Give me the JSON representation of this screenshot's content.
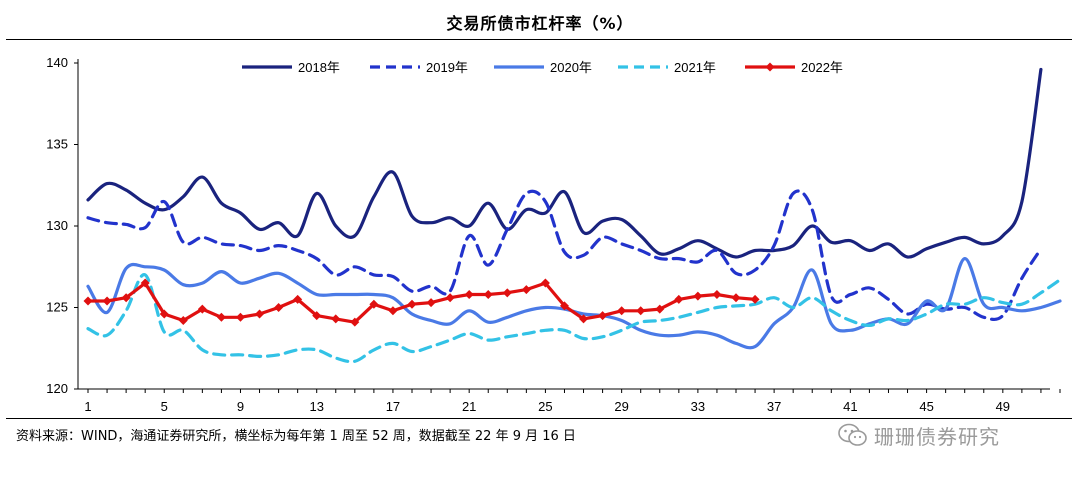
{
  "title": "交易所债市杠杆率（%）",
  "source_note": "资料来源：WIND，海通证券研究所，横坐标为每年第 1 周至 52 周，数据截至 22 年 9 月 16 日",
  "watermark": "珊珊债券研究",
  "colors": {
    "2018年": "#1a237e",
    "2019年": "#2233cc",
    "2020年": "#4a7ae6",
    "2021年": "#33c2e6",
    "2022年": "#e01010"
  },
  "chart_data": {
    "type": "line",
    "title": "交易所债市杠杆率（%）",
    "xlabel": "",
    "ylabel": "",
    "xlim": [
      1,
      52
    ],
    "ylim": [
      120,
      140
    ],
    "yticks": [
      120,
      125,
      130,
      135,
      140
    ],
    "xticks": [
      1,
      5,
      9,
      13,
      17,
      21,
      25,
      29,
      33,
      37,
      41,
      45,
      49
    ],
    "grid": false,
    "legend_position": "top",
    "series": [
      {
        "name": "2018年",
        "style": "solid",
        "markers": false,
        "x": [
          1,
          2,
          3,
          4,
          5,
          6,
          7,
          8,
          9,
          10,
          11,
          12,
          13,
          14,
          15,
          16,
          17,
          18,
          19,
          20,
          21,
          22,
          23,
          24,
          25,
          26,
          27,
          28,
          29,
          30,
          31,
          32,
          33,
          34,
          35,
          36,
          37,
          38,
          39,
          40,
          41,
          42,
          43,
          44,
          45,
          46,
          47,
          48,
          49,
          50,
          51
        ],
        "values": [
          131.6,
          132.6,
          132.2,
          131.4,
          131.0,
          131.8,
          133.0,
          131.4,
          130.8,
          129.8,
          130.2,
          129.4,
          132.0,
          130.0,
          129.4,
          131.8,
          133.3,
          130.6,
          130.2,
          130.5,
          130.0,
          131.4,
          129.8,
          131.0,
          130.8,
          132.1,
          129.6,
          130.3,
          130.4,
          129.4,
          128.3,
          128.6,
          129.1,
          128.6,
          128.1,
          128.5,
          128.5,
          128.8,
          130.0,
          129.0,
          129.1,
          128.5,
          128.9,
          128.1,
          128.6,
          129.0,
          129.3,
          128.9,
          129.4,
          131.5,
          139.6
        ]
      },
      {
        "name": "2019年",
        "style": "dashed",
        "markers": false,
        "x": [
          1,
          2,
          3,
          4,
          5,
          6,
          7,
          8,
          9,
          10,
          11,
          12,
          13,
          14,
          15,
          16,
          17,
          18,
          19,
          20,
          21,
          22,
          23,
          24,
          25,
          26,
          27,
          28,
          29,
          30,
          31,
          32,
          33,
          34,
          35,
          36,
          37,
          38,
          39,
          40,
          41,
          42,
          43,
          44,
          45,
          46,
          47,
          48,
          49,
          50,
          51
        ],
        "values": [
          130.5,
          130.2,
          130.1,
          129.9,
          131.5,
          129.0,
          129.3,
          128.9,
          128.8,
          128.5,
          128.8,
          128.5,
          128.0,
          127.0,
          127.5,
          127.0,
          126.9,
          126.0,
          126.3,
          126.0,
          129.4,
          127.6,
          129.8,
          132.0,
          131.5,
          128.4,
          128.2,
          129.3,
          128.9,
          128.5,
          128.0,
          128.0,
          127.8,
          128.5,
          127.1,
          127.3,
          128.8,
          132.0,
          131.0,
          125.7,
          125.8,
          126.2,
          125.5,
          124.6,
          125.2,
          124.9,
          125.0,
          124.4,
          124.5,
          126.8,
          128.6
        ]
      },
      {
        "name": "2020年",
        "style": "solid",
        "markers": false,
        "x": [
          1,
          2,
          3,
          4,
          5,
          6,
          7,
          8,
          9,
          10,
          11,
          12,
          13,
          14,
          15,
          16,
          17,
          18,
          19,
          20,
          21,
          22,
          23,
          24,
          25,
          26,
          27,
          28,
          29,
          30,
          31,
          32,
          33,
          34,
          35,
          36,
          37,
          38,
          39,
          40,
          41,
          42,
          43,
          44,
          45,
          46,
          47,
          48,
          49,
          50,
          51,
          52
        ],
        "values": [
          126.3,
          124.7,
          127.4,
          127.5,
          127.3,
          126.4,
          126.5,
          127.2,
          126.5,
          126.8,
          127.1,
          126.5,
          125.8,
          125.8,
          125.8,
          125.8,
          125.6,
          124.6,
          124.2,
          124.0,
          124.8,
          124.1,
          124.4,
          124.8,
          125.0,
          124.9,
          124.6,
          124.5,
          124.2,
          123.6,
          123.3,
          123.3,
          123.5,
          123.3,
          122.8,
          122.6,
          124.0,
          125.0,
          127.3,
          124.0,
          123.6,
          124.0,
          124.3,
          124.0,
          125.4,
          124.9,
          128.0,
          125.2,
          125.0,
          124.8,
          125.0,
          125.4
        ]
      },
      {
        "name": "2021年",
        "style": "dashed",
        "markers": false,
        "x": [
          1,
          2,
          3,
          4,
          5,
          6,
          7,
          8,
          9,
          10,
          11,
          12,
          13,
          14,
          15,
          16,
          17,
          18,
          19,
          20,
          21,
          22,
          23,
          24,
          25,
          26,
          27,
          28,
          29,
          30,
          31,
          32,
          33,
          34,
          35,
          36,
          37,
          38,
          39,
          40,
          41,
          42,
          43,
          44,
          45,
          46,
          47,
          48,
          49,
          50,
          51,
          52
        ],
        "values": [
          123.7,
          123.3,
          124.8,
          127.0,
          123.5,
          123.6,
          122.4,
          122.1,
          122.1,
          122.0,
          122.1,
          122.4,
          122.4,
          121.9,
          121.7,
          122.4,
          122.8,
          122.3,
          122.6,
          123.0,
          123.4,
          123.0,
          123.2,
          123.4,
          123.6,
          123.6,
          123.1,
          123.2,
          123.6,
          124.1,
          124.2,
          124.4,
          124.7,
          125.0,
          125.1,
          125.2,
          125.6,
          125.0,
          125.6,
          124.8,
          124.2,
          123.9,
          124.3,
          124.2,
          124.6,
          125.2,
          125.2,
          125.6,
          125.3,
          125.2,
          125.9,
          126.7
        ]
      },
      {
        "name": "2022年",
        "style": "solid",
        "markers": true,
        "x": [
          1,
          2,
          3,
          4,
          5,
          6,
          7,
          8,
          9,
          10,
          11,
          12,
          13,
          14,
          15,
          16,
          17,
          18,
          19,
          20,
          21,
          22,
          23,
          24,
          25,
          26,
          27,
          28,
          29,
          30,
          31,
          32,
          33,
          34,
          35,
          36
        ],
        "values": [
          125.4,
          125.4,
          125.6,
          126.5,
          124.6,
          124.2,
          124.9,
          124.4,
          124.4,
          124.6,
          125.0,
          125.5,
          124.5,
          124.3,
          124.1,
          125.2,
          124.8,
          125.2,
          125.3,
          125.6,
          125.8,
          125.8,
          125.9,
          126.1,
          126.5,
          125.1,
          124.3,
          124.5,
          124.8,
          124.8,
          124.9,
          125.5,
          125.7,
          125.8,
          125.6,
          125.5
        ]
      }
    ]
  }
}
